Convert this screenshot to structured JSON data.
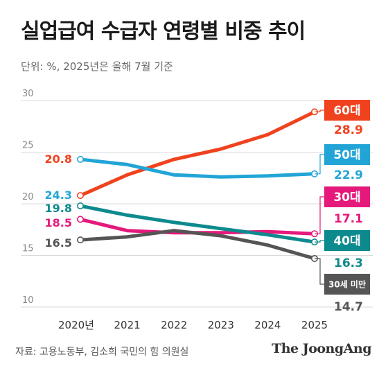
{
  "title": "실업급여 수급자 연령별 비중 추이",
  "unit_note": "단위: %, 2025년은 올해 7월 기준",
  "source": "자료: 고용노동부, 김소희 국민의 힘 의원실",
  "brand": "The JoongAng",
  "chart_data": {
    "type": "line",
    "x": [
      "2020년",
      "2021",
      "2022",
      "2023",
      "2024",
      "2025"
    ],
    "ylim": [
      10,
      30
    ],
    "y_ticks": [
      "30",
      "25",
      "20",
      "15",
      "10"
    ],
    "grid": true,
    "series": [
      {
        "name": "60대",
        "color": "#f0421e",
        "values": [
          20.8,
          22.8,
          24.3,
          25.3,
          26.7,
          28.9
        ],
        "start_label": "20.8",
        "end_label": "28.9"
      },
      {
        "name": "50대",
        "color": "#22a5d6",
        "values": [
          24.3,
          23.8,
          22.8,
          22.6,
          22.7,
          22.9
        ],
        "start_label": "24.3",
        "end_label": "22.9"
      },
      {
        "name": "30대",
        "color": "#e5197c",
        "values": [
          18.5,
          17.4,
          17.2,
          17.2,
          17.3,
          17.1
        ],
        "start_label": "18.5",
        "end_label": "17.1"
      },
      {
        "name": "40대",
        "color": "#0d8a8e",
        "values": [
          19.8,
          18.9,
          18.2,
          17.6,
          17.0,
          16.3
        ],
        "start_label": "19.8",
        "end_label": "16.3"
      },
      {
        "name": "30세 미만",
        "color": "#555555",
        "values": [
          16.5,
          16.8,
          17.4,
          16.9,
          16.0,
          14.7
        ],
        "start_label": "16.5",
        "end_label": "14.7"
      }
    ]
  }
}
